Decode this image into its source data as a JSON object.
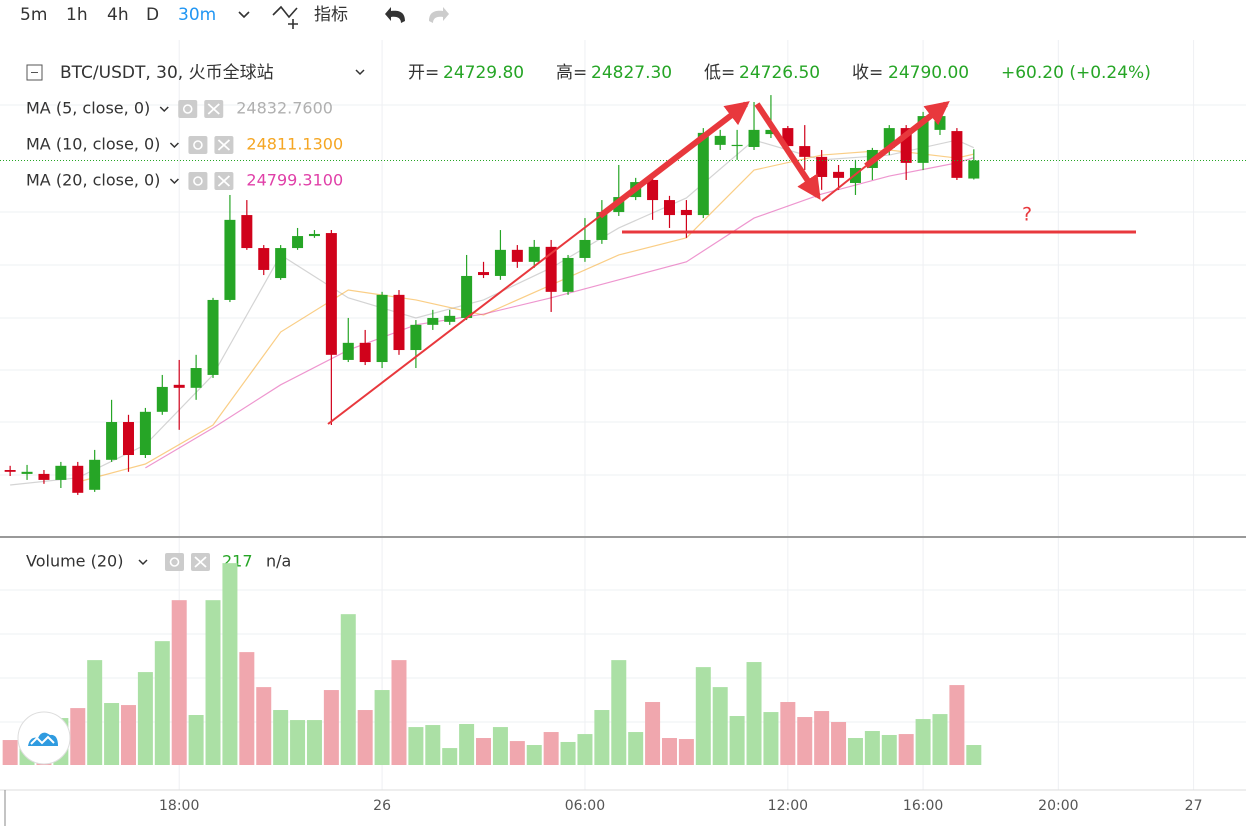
{
  "toolbar": {
    "intervals": [
      "5m",
      "1h",
      "4h",
      "D",
      "30m"
    ],
    "active": 4,
    "indicators": "指标"
  },
  "chart_data": {
    "type": "candlestick",
    "symbol": "BTC/USDT, 30, 火币全球站",
    "ohlc": [
      {
        "label": "开=",
        "value": "24729.80"
      },
      {
        "label": "高=",
        "value": "24827.30"
      },
      {
        "label": "低=",
        "value": "24726.50"
      },
      {
        "label": "收=",
        "value": "24790.00"
      }
    ],
    "change": "+60.20 (+0.24%)",
    "open": [
      23758,
      23745,
      23745,
      23725,
      23772,
      23692,
      23792,
      23918,
      23808,
      23952,
      24042,
      24032,
      24075,
      24325,
      24608,
      24498,
      24398,
      24498,
      24538,
      24548,
      24125,
      24182,
      24118,
      24342,
      24158,
      24242,
      24252,
      24265,
      24418,
      24405,
      24492,
      24452,
      24502,
      24352,
      24465,
      24525,
      24618,
      24668,
      24725,
      24658,
      24625,
      24608,
      24842,
      24838,
      24835,
      24878,
      24898,
      24838,
      24802,
      24752,
      24715,
      24765,
      24832,
      24898,
      24782,
      24892,
      24888,
      24729.8
    ],
    "high": [
      23772,
      23775,
      23758,
      23785,
      23785,
      23825,
      23992,
      23942,
      23965,
      24075,
      24125,
      24142,
      24332,
      24675,
      24658,
      24508,
      24508,
      24565,
      24558,
      24558,
      24265,
      24225,
      24352,
      24358,
      24258,
      24292,
      24292,
      24475,
      24452,
      24558,
      24508,
      24525,
      24525,
      24475,
      24598,
      24658,
      24775,
      24732,
      24742,
      24672,
      24658,
      24898,
      24892,
      24892,
      24985,
      25008,
      24905,
      24908,
      24825,
      24775,
      24792,
      24832,
      24908,
      24908,
      24952,
      24958,
      24898,
      24827.3
    ],
    "low": [
      23738,
      23725,
      23712,
      23698,
      23675,
      23685,
      23785,
      23752,
      23798,
      23942,
      23892,
      23992,
      24065,
      24318,
      24492,
      24408,
      24392,
      24492,
      24532,
      23908,
      24118,
      24108,
      24098,
      24142,
      24098,
      24225,
      24242,
      24258,
      24398,
      24392,
      24432,
      24432,
      24285,
      24342,
      24452,
      24512,
      24605,
      24658,
      24592,
      24565,
      24532,
      24598,
      24825,
      24792,
      24825,
      24865,
      24825,
      24758,
      24692,
      24692,
      24675,
      24725,
      24808,
      24725,
      24758,
      24875,
      24725,
      24726.5
    ],
    "close": [
      23752,
      23752,
      23725,
      23772,
      23682,
      23792,
      23918,
      23808,
      23952,
      24035,
      24032,
      24098,
      24325,
      24592,
      24498,
      24425,
      24498,
      24538,
      24545,
      24142,
      24182,
      24118,
      24342,
      24158,
      24242,
      24265,
      24272,
      24405,
      24408,
      24492,
      24452,
      24502,
      24352,
      24465,
      24525,
      24618,
      24668,
      24718,
      24658,
      24608,
      24608,
      24882,
      24872,
      24842,
      24892,
      24892,
      24838,
      24802,
      24735,
      24732,
      24765,
      24825,
      24898,
      24782,
      24938,
      24938,
      24732,
      24790
    ],
    "up_color": "#26a526",
    "down_color": "#d0021b",
    "ylim": [
      23568,
      25165
    ],
    "xlim": [
      -0.6,
      73.1
    ],
    "xticks": [
      {
        "value": 10,
        "label": "18:00"
      },
      {
        "value": 22,
        "label": "26"
      },
      {
        "value": 34,
        "label": "06:00"
      },
      {
        "value": 46,
        "label": "12:00"
      },
      {
        "value": 54,
        "label": "16:00"
      },
      {
        "value": 62,
        "label": "20:00"
      },
      {
        "value": 70,
        "label": "27"
      }
    ],
    "series": [
      {
        "name": "MA (5, close, 0)",
        "color": "#b0b0b0",
        "value_label": "24832.7600",
        "x": [
          0,
          4,
          8,
          12,
          16,
          20,
          24,
          28,
          32,
          36,
          40,
          44,
          48,
          52,
          56,
          57
        ],
        "values": [
          23708,
          23732,
          23842,
          24075,
          24475,
          24332,
          24265,
          24325,
          24432,
          24565,
          24665,
          24858,
          24792,
          24808,
          24858,
          24832.76
        ]
      },
      {
        "name": "MA (10, close, 0)",
        "color": "#f5a623",
        "value_label": "24811.1300",
        "x": [
          4,
          8,
          12,
          16,
          20,
          24,
          28,
          32,
          36,
          40,
          44,
          48,
          52,
          56,
          57
        ],
        "values": [
          23718,
          23778,
          23908,
          24218,
          24358,
          24325,
          24275,
          24375,
          24475,
          24532,
          24758,
          24808,
          24825,
          24798,
          24811.13
        ]
      },
      {
        "name": "MA (20, close, 0)",
        "color": "#e040a8",
        "value_label": "24799.3100",
        "x": [
          8,
          12,
          16,
          20,
          24,
          28,
          32,
          36,
          40,
          44,
          48,
          52,
          56,
          57
        ],
        "values": [
          23765,
          23898,
          24042,
          24158,
          24242,
          24278,
          24332,
          24392,
          24452,
          24598,
          24678,
          24738,
          24782,
          24799.31
        ]
      }
    ],
    "annotation": "?",
    "volume": {
      "name": "Volume (20)",
      "value_label": "217",
      "extra": "n/a",
      "ylim": [
        0,
        2400
      ],
      "up_color": "#abe0a5",
      "down_color": "#f0a7ae",
      "values": [
        271,
        326,
        510,
        510,
        618,
        1139,
        673,
        651,
        1009,
        1345,
        1790,
        543,
        1790,
        2192,
        1226,
        846,
        597,
        488,
        488,
        814,
        1638,
        597,
        814,
        1139,
        412,
        434,
        184,
        445,
        293,
        412,
        260,
        217,
        358,
        250,
        336,
        597,
        1139,
        358,
        684,
        293,
        282,
        1063,
        846,
        532,
        1118,
        575,
        684,
        521,
        586,
        467,
        293,
        369,
        326,
        336,
        499,
        553,
        868,
        217
      ]
    }
  }
}
